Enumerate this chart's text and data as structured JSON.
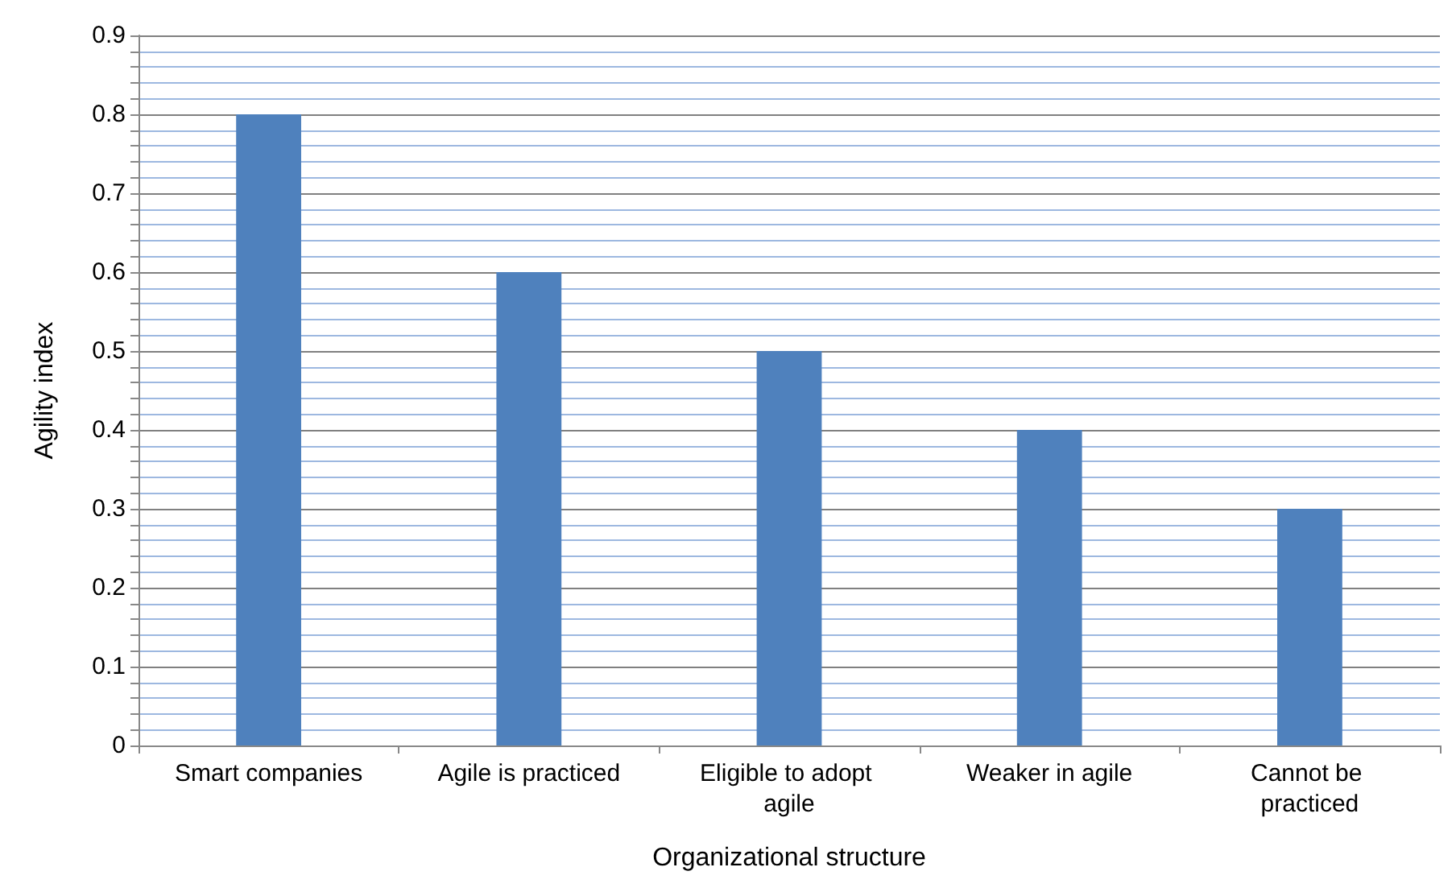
{
  "chart_data": {
    "type": "bar",
    "xlabel": "Organizational structure",
    "ylabel": "Agility index",
    "categories": [
      "Smart companies",
      "Agile is practiced",
      "Eligible to adopt agile",
      "Weaker in agile",
      "Cannot be practiced"
    ],
    "values": [
      0.8,
      0.6,
      0.5,
      0.4,
      0.3
    ],
    "color": "#4f81bd",
    "ylim": [
      0,
      0.9
    ],
    "yticks": [
      0,
      {
        "value": 0.02,
        "label": null
      },
      {
        "value": 0.04,
        "label": null
      },
      {
        "value": 0.06,
        "label": null
      },
      {
        "value": 0.08,
        "label": null
      },
      0.1,
      {
        "value": 0.12,
        "label": null
      },
      {
        "value": 0.14,
        "label": null
      },
      {
        "value": 0.16,
        "label": null
      },
      {
        "value": 0.18,
        "label": null
      },
      0.2,
      {
        "value": 0.22,
        "label": null
      },
      {
        "value": 0.24,
        "label": null
      },
      {
        "value": 0.26,
        "label": null
      },
      {
        "value": 0.28,
        "label": null
      },
      0.3,
      {
        "value": 0.32,
        "label": null
      },
      {
        "value": 0.34,
        "label": null
      },
      {
        "value": 0.36,
        "label": null
      },
      {
        "value": 0.38,
        "label": null
      },
      0.4,
      {
        "value": 0.42,
        "label": null
      },
      {
        "value": 0.44,
        "label": null
      },
      {
        "value": 0.46,
        "label": null
      },
      {
        "value": 0.48,
        "label": null
      },
      0.5,
      {
        "value": 0.52,
        "label": null
      },
      {
        "value": 0.54,
        "label": null
      },
      {
        "value": 0.56,
        "label": null
      },
      {
        "value": 0.58,
        "label": null
      },
      0.6,
      {
        "value": 0.62,
        "label": null
      },
      {
        "value": 0.64,
        "label": null
      },
      {
        "value": 0.66,
        "label": null
      },
      {
        "value": 0.68,
        "label": null
      },
      0.7,
      {
        "value": 0.72,
        "label": null
      },
      {
        "value": 0.74,
        "label": null
      },
      {
        "value": 0.76,
        "label": null
      },
      {
        "value": 0.78,
        "label": null
      },
      0.8,
      {
        "value": 0.82,
        "label": null
      },
      {
        "value": 0.84,
        "label": null
      },
      {
        "value": 0.86,
        "label": null
      },
      {
        "value": 0.88,
        "label": null
      },
      0.9
    ],
    "grid": true
  }
}
